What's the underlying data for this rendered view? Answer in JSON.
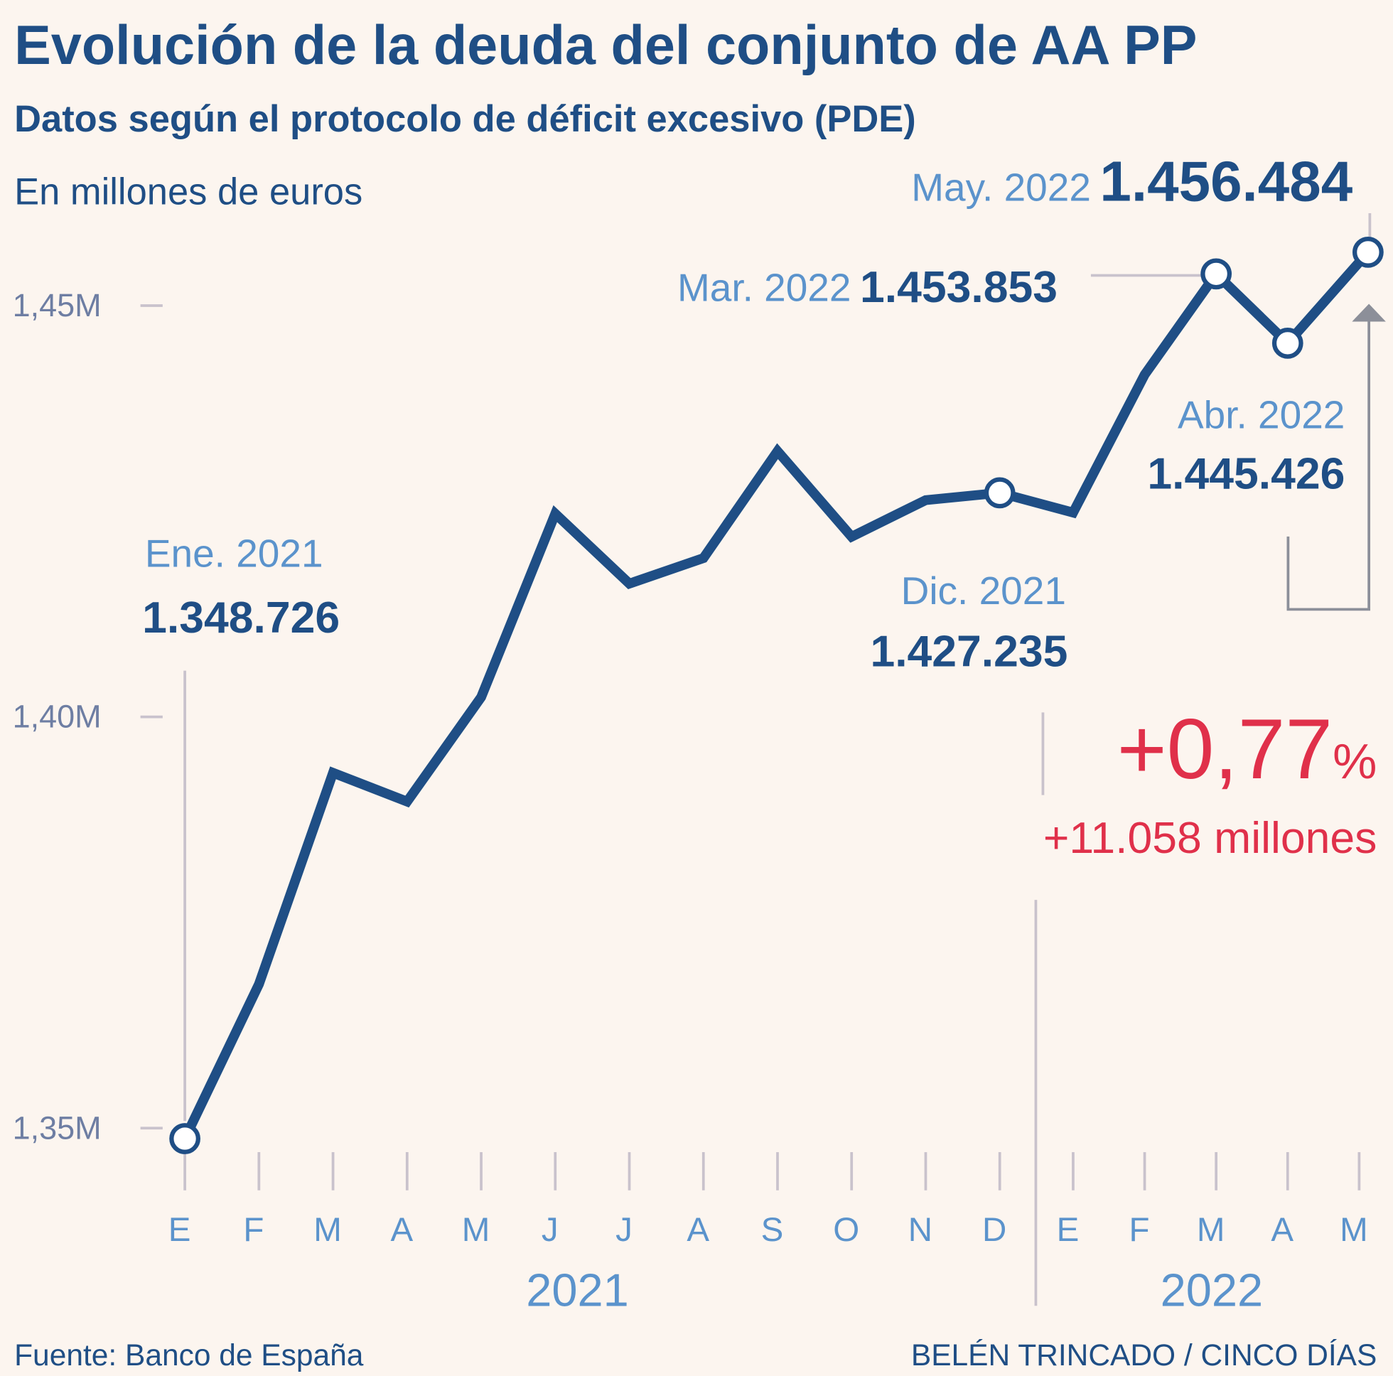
{
  "header": {
    "title": "Evolución de la deuda del conjunto de AA PP",
    "subtitle": "Datos según el protocolo de déficit excesivo (PDE)",
    "unit": "En millones de euros"
  },
  "chart_data": {
    "type": "line",
    "title": "Evolución de la deuda del conjunto de AA PP",
    "ylabel": "En millones de euros",
    "ylim": [
      1345000,
      1460000
    ],
    "yticks": [
      "1,35M",
      "1,40M",
      "1,45M"
    ],
    "ytick_values": [
      1350000,
      1400000,
      1450000
    ],
    "x": [
      "E",
      "F",
      "M",
      "A",
      "M",
      "J",
      "J",
      "A",
      "S",
      "O",
      "N",
      "D",
      "E",
      "F",
      "M",
      "A",
      "M"
    ],
    "years": [
      "2021",
      "2022"
    ],
    "values": [
      1348726,
      1367500,
      1393200,
      1389700,
      1402400,
      1424700,
      1416200,
      1419300,
      1432300,
      1421900,
      1426350,
      1427235,
      1424840,
      1441600,
      1453853,
      1445426,
      1456484
    ],
    "highlighted": [
      0,
      11,
      14,
      15,
      16
    ],
    "line_color": "#1f4e85",
    "grid": false,
    "annotations": [
      {
        "label": "Ene. 2021",
        "value": "1.348.726"
      },
      {
        "label": "Dic. 2021",
        "value": "1.427.235"
      },
      {
        "label": "Mar. 2022",
        "value": "1.453.853"
      },
      {
        "label": "Abr. 2022",
        "value": "1.445.426"
      },
      {
        "label": "May. 2022",
        "value": "1.456.484"
      }
    ],
    "change": {
      "percent": "+0,77",
      "percent_sign": "%",
      "absolute": "+11.058 millones",
      "color": "#e0304a"
    }
  },
  "footer": {
    "source": "Fuente: Banco de España",
    "credit": "BELÉN TRINCADO / CINCO DÍAS"
  }
}
